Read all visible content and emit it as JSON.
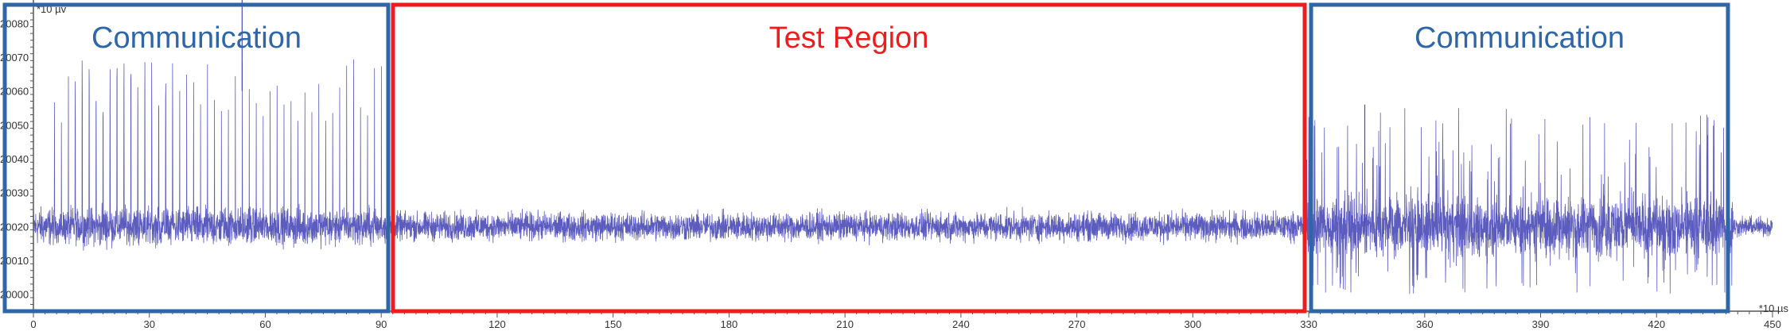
{
  "chart_data": {
    "type": "line",
    "x_unit": "*10 µs",
    "y_unit": "*10 µv",
    "xlim": [
      0,
      450
    ],
    "ylim": [
      19995,
      20085
    ],
    "x_ticks": [
      0,
      30,
      60,
      90,
      120,
      150,
      180,
      210,
      240,
      270,
      300,
      330,
      360,
      390,
      420,
      450
    ],
    "x_tick_labels": [
      "0",
      "30",
      "60",
      "90",
      "120",
      "150",
      "180",
      "210",
      "240",
      "270",
      "300",
      "330",
      "360",
      "390",
      "420",
      "450"
    ],
    "y_ticks": [
      20000,
      20010,
      20020,
      20030,
      20040,
      20050,
      20060,
      20070,
      20080
    ],
    "y_tick_labels": [
      "20000",
      "20010",
      "20020",
      "20030",
      "20040",
      "20050",
      "20060",
      "20070",
      "20080"
    ],
    "grid": false,
    "series_color": "#4a4ab8",
    "baseline": 20020,
    "segments": [
      {
        "x_range": [
          0,
          91
        ],
        "noise_amplitude": 8,
        "pulse_period": 1.8,
        "pulse_peak": 20070
      },
      {
        "x_range": [
          93,
          328
        ],
        "noise_amplitude": 6
      },
      {
        "x_range": [
          329,
          440
        ],
        "noise_amplitude": 13,
        "occasional_peaks": 20045
      },
      {
        "x_range": [
          440,
          450
        ],
        "noise_amplitude": 4
      }
    ],
    "regions": [
      {
        "label": "Communication",
        "x_range": [
          0,
          91
        ],
        "color": "#2e66a8"
      },
      {
        "label": "Test Region",
        "x_range": [
          93,
          329
        ],
        "color": "#ee1c1c"
      },
      {
        "label": "Communication",
        "x_range": [
          330,
          439
        ],
        "color": "#2e66a8"
      }
    ]
  }
}
